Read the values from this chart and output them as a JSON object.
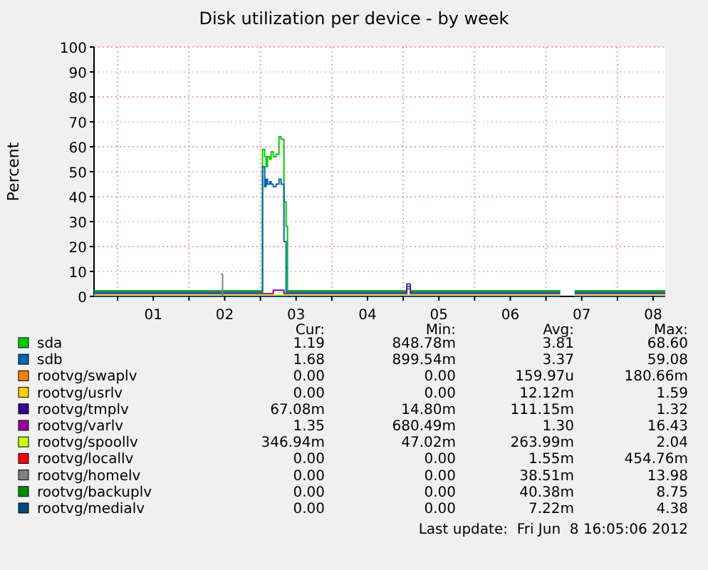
{
  "chart_data": {
    "type": "step",
    "title": "Disk utilization per device - by week",
    "ylabel": "Percent",
    "xlim": [
      0.67,
      8.67
    ],
    "ylim": [
      0,
      100
    ],
    "xticks": [
      {
        "value": 1,
        "label": null
      },
      {
        "value": 1.5,
        "label": "01"
      },
      {
        "value": 2,
        "label": null
      },
      {
        "value": 2.5,
        "label": "02"
      },
      {
        "value": 3,
        "label": null
      },
      {
        "value": 3.5,
        "label": "03"
      },
      {
        "value": 4,
        "label": null
      },
      {
        "value": 4.5,
        "label": "04"
      },
      {
        "value": 5,
        "label": null
      },
      {
        "value": 5.5,
        "label": "05"
      },
      {
        "value": 6,
        "label": null
      },
      {
        "value": 6.5,
        "label": "06"
      },
      {
        "value": 7,
        "label": null
      },
      {
        "value": 7.5,
        "label": "07"
      },
      {
        "value": 8,
        "label": null
      },
      {
        "value": 8.5,
        "label": "08"
      }
    ],
    "yticks": [
      0,
      10,
      20,
      30,
      40,
      50,
      60,
      70,
      80,
      90,
      100
    ],
    "grid": true,
    "legend": "bottom",
    "x": [
      0.67,
      1.0,
      1.5,
      2.0,
      2.45,
      2.47,
      2.8,
      3.0,
      3.03,
      3.06,
      3.08,
      3.1,
      3.13,
      3.15,
      3.18,
      3.22,
      3.26,
      3.29,
      3.33,
      3.36,
      3.38,
      3.6,
      4.0,
      4.5,
      5.0,
      5.05,
      5.1,
      5.5,
      6.0,
      6.5,
      7.02,
      7.2,
      7.4,
      7.8,
      8.0,
      8.3,
      8.67
    ],
    "series": [
      {
        "name": "sda",
        "color": "#00cc00",
        "values": [
          2.3,
          2.3,
          2.3,
          2.3,
          2.3,
          2.3,
          2.3,
          2.3,
          59,
          56,
          52,
          56,
          55,
          58,
          56,
          57,
          64,
          63,
          38,
          28,
          2.3,
          2.3,
          2.3,
          2.3,
          2.3,
          3,
          2.3,
          2.3,
          2.3,
          2.3,
          2.3,
          null,
          2.3,
          2.3,
          2.3,
          2.3,
          2.3
        ]
      },
      {
        "name": "sdb",
        "color": "#0066b3",
        "values": [
          1.7,
          1.7,
          1.7,
          1.7,
          1.7,
          1.7,
          1.7,
          1.7,
          52,
          44,
          47,
          45,
          46,
          45,
          44,
          45,
          47,
          45,
          22,
          1.7,
          1.7,
          1.7,
          1.7,
          1.7,
          1.7,
          5,
          1.7,
          1.7,
          1.7,
          1.7,
          1.7,
          null,
          1.7,
          1.7,
          1.7,
          1.7,
          1.7
        ]
      },
      {
        "name": "rootvg/swaplv",
        "color": "#ff8000",
        "values": [
          null,
          null,
          null,
          null,
          null,
          null,
          null,
          null,
          null,
          null,
          null,
          null,
          null,
          null,
          null,
          null,
          null,
          null,
          null,
          null,
          null,
          null,
          null,
          null,
          null,
          null,
          null,
          null,
          null,
          null,
          null,
          null,
          null,
          null,
          null,
          null,
          null
        ]
      },
      {
        "name": "rootvg/usrlv",
        "color": "#ffcc00",
        "values": [
          null,
          null,
          null,
          null,
          null,
          null,
          null,
          null,
          null,
          null,
          null,
          null,
          null,
          null,
          null,
          null,
          null,
          null,
          null,
          null,
          null,
          null,
          null,
          null,
          null,
          null,
          null,
          null,
          null,
          null,
          null,
          null,
          null,
          null,
          null,
          null,
          null
        ]
      },
      {
        "name": "rootvg/tmplv",
        "color": "#330099",
        "values": [
          null,
          null,
          null,
          null,
          null,
          null,
          null,
          null,
          null,
          null,
          null,
          null,
          null,
          null,
          null,
          null,
          null,
          null,
          null,
          null,
          null,
          null,
          null,
          null,
          null,
          null,
          null,
          null,
          null,
          null,
          null,
          null,
          null,
          null,
          null,
          null,
          null
        ]
      },
      {
        "name": "rootvg/varlv",
        "color": "#990099",
        "values": [
          1.1,
          1.1,
          1.1,
          1.1,
          1.1,
          1.1,
          1.1,
          1.1,
          1.1,
          1.1,
          1.1,
          1.1,
          1.1,
          1.1,
          2.5,
          2.5,
          2.5,
          2.5,
          1.1,
          1.1,
          1.1,
          1.1,
          1.1,
          1.1,
          1.1,
          4,
          1.1,
          1.1,
          1.1,
          1.1,
          1.1,
          null,
          1.1,
          1.1,
          1.1,
          1.1,
          1.1
        ]
      },
      {
        "name": "rootvg/spoollv",
        "color": "#ccff00",
        "values": [
          0.5,
          0.5,
          0.5,
          0.5,
          0.5,
          0.5,
          0.5,
          0.5,
          0.5,
          0.5,
          0.5,
          0.5,
          0.5,
          0.5,
          0.5,
          0.5,
          0.5,
          0.5,
          0.5,
          0.5,
          0.5,
          0.5,
          0.5,
          0.5,
          0.5,
          0.5,
          0.5,
          0.5,
          0.5,
          0.5,
          0.5,
          null,
          0.5,
          0.5,
          0.5,
          0.5,
          0.5
        ]
      },
      {
        "name": "rootvg/locallv",
        "color": "#ff0000",
        "values": [
          null,
          null,
          null,
          null,
          null,
          null,
          null,
          null,
          null,
          null,
          null,
          null,
          null,
          null,
          null,
          null,
          null,
          null,
          null,
          null,
          null,
          null,
          null,
          null,
          null,
          null,
          null,
          null,
          null,
          null,
          null,
          null,
          null,
          null,
          null,
          null,
          null
        ]
      },
      {
        "name": "rootvg/homelv",
        "color": "#808080",
        "x": [
          2.45,
          2.47
        ],
        "values": [
          9,
          0
        ]
      },
      {
        "name": "rootvg/backuplv",
        "color": "#008f00",
        "values": [
          null,
          null,
          null,
          null,
          null,
          null,
          null,
          null,
          null,
          null,
          null,
          null,
          null,
          null,
          null,
          null,
          null,
          null,
          null,
          null,
          null,
          null,
          null,
          null,
          null,
          null,
          null,
          null,
          null,
          null,
          null,
          null,
          null,
          null,
          null,
          null,
          null
        ]
      },
      {
        "name": "rootvg/medialv",
        "color": "#00487d",
        "values": [
          0,
          0,
          0,
          0,
          0,
          0,
          0,
          0,
          0,
          0,
          0,
          0,
          0,
          0,
          0,
          0,
          0,
          0,
          0,
          0,
          0,
          0,
          0,
          0,
          0,
          0,
          0,
          0,
          0,
          0,
          0,
          null,
          0,
          0,
          0,
          0,
          0
        ]
      }
    ],
    "annotations": [
      "Cur:",
      "Min:",
      "Avg:",
      "Max:",
      "1.19",
      "848.78m",
      "3.81",
      "68.60",
      "1.68",
      "899.54m",
      "3.37",
      "59.08",
      "0.00",
      "0.00",
      "159.97u",
      "180.66m",
      "0.00",
      "0.00",
      "12.12m",
      "1.59",
      "67.08m",
      "14.80m",
      "111.15m",
      "1.32",
      "1.35",
      "680.49m",
      "1.30",
      "16.43",
      "346.94m",
      "47.02m",
      "263.99m",
      "2.04",
      "0.00",
      "0.00",
      "1.55m",
      "454.76m",
      "0.00",
      "0.00",
      "38.51m",
      "13.98",
      "0.00",
      "0.00",
      "40.38m",
      "8.75",
      "0.00",
      "0.00",
      "7.22m",
      "4.38",
      "Last update:  Fri Jun  8 16:05:06 2012"
    ]
  }
}
